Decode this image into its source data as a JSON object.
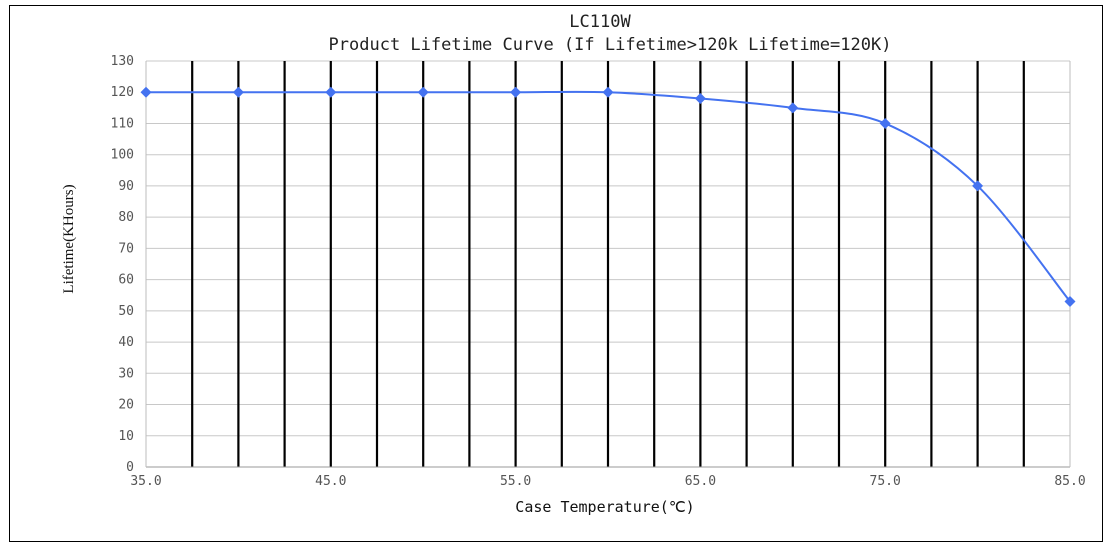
{
  "chart_data": {
    "type": "line",
    "title": "LC110W",
    "subtitle": "Product Lifetime Curve (If Lifetime>120k Lifetime=120K)",
    "xlabel": "Case Temperature(℃)",
    "ylabel": "Lifetime(KHours)",
    "xlim": [
      35,
      85
    ],
    "ylim": [
      0,
      130
    ],
    "x_ticks": [
      "35.0",
      "45.0",
      "55.0",
      "65.0",
      "75.0",
      "85.0"
    ],
    "y_ticks": [
      "0",
      "10",
      "20",
      "30",
      "40",
      "50",
      "60",
      "70",
      "80",
      "90",
      "100",
      "110",
      "120",
      "130"
    ],
    "vertical_lines_x": [
      37.5,
      40,
      42.5,
      45,
      47.5,
      50,
      52.5,
      55,
      57.5,
      60,
      62.5,
      65,
      67.5,
      70,
      72.5,
      75,
      77.5,
      80,
      82.5
    ],
    "grid": "horizontal + vertical",
    "legend": "none",
    "series": [
      {
        "x": [
          35,
          40,
          45,
          50,
          55,
          60,
          65,
          70,
          75,
          80,
          85
        ],
        "y": [
          120,
          120,
          120,
          120,
          120,
          120,
          118,
          115,
          110,
          90,
          53
        ],
        "color": "#4472f0",
        "marker": "diamond",
        "smooth": true
      }
    ]
  }
}
